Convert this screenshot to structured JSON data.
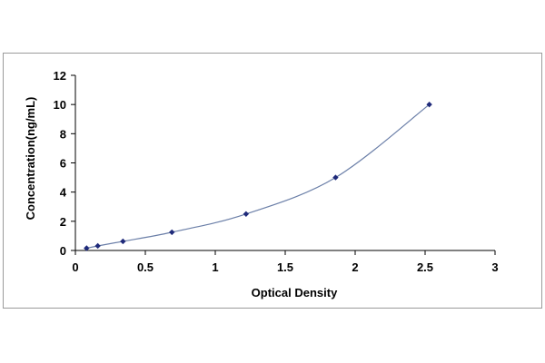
{
  "chart_data": {
    "type": "scatter",
    "title": "",
    "xlabel": "Optical Density",
    "ylabel": "Concentration(ng/mL)",
    "xlim": [
      0,
      3
    ],
    "ylim": [
      0,
      12
    ],
    "x_ticks": [
      0,
      0.5,
      1,
      1.5,
      2,
      2.5,
      3
    ],
    "x_tick_labels": [
      "0",
      "0.5",
      "1",
      "1.5",
      "2",
      "2.5",
      "3"
    ],
    "y_ticks": [
      0,
      2,
      4,
      6,
      8,
      10,
      12
    ],
    "y_tick_labels": [
      "0",
      "2",
      "4",
      "6",
      "8",
      "10",
      "12"
    ],
    "grid": false,
    "legend": "none",
    "series": [
      {
        "x": [
          0.08,
          0.16,
          0.34,
          0.69,
          1.22,
          1.86,
          2.53
        ],
        "y": [
          0.156,
          0.312,
          0.625,
          1.25,
          2.5,
          5,
          10
        ],
        "marker_color": "#1f2a7a",
        "trendline": "smooth curve",
        "trendline_color": "#6b7fa8"
      }
    ]
  }
}
